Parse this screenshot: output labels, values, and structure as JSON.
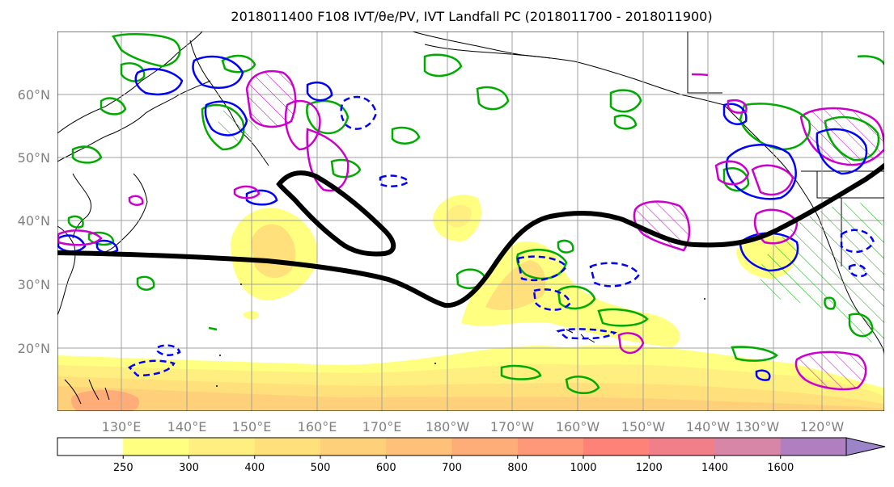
{
  "title": "2018011400 F108 IVT/θe/PV, IVT Landfall PC (2018011700 - 2018011900)",
  "map": {
    "lat_labels": [
      "60°N",
      "50°N",
      "40°N",
      "30°N",
      "20°N"
    ],
    "lon_labels": [
      "130°E",
      "140°E",
      "150°E",
      "160°E",
      "170°E",
      "180°W",
      "170°W",
      "160°W",
      "150°W",
      "140°W",
      "130°W",
      "120°W"
    ],
    "grid": true,
    "projection": "equirectangular",
    "extent": {
      "lon": [
        120,
        247
      ],
      "lat": [
        10,
        70
      ]
    }
  },
  "colorbar": {
    "ticks": [
      "250",
      "300",
      "400",
      "500",
      "600",
      "700",
      "800",
      "1000",
      "1200",
      "1400",
      "1600"
    ],
    "colors": [
      "#ffff80",
      "#ffef80",
      "#ffe07a",
      "#ffd07a",
      "#ffc07a",
      "#ffad78",
      "#ff9878",
      "#ff8278",
      "#f07f8a",
      "#d886a8",
      "#b07fc0",
      "#9c84c8"
    ],
    "extend": "max"
  },
  "colors": {
    "land_outline": "#000000",
    "principal_component": "#000000",
    "theta_e": "#00aa00",
    "pv_positive": "#0000ff",
    "pv_negative": "#cc00cc"
  }
}
